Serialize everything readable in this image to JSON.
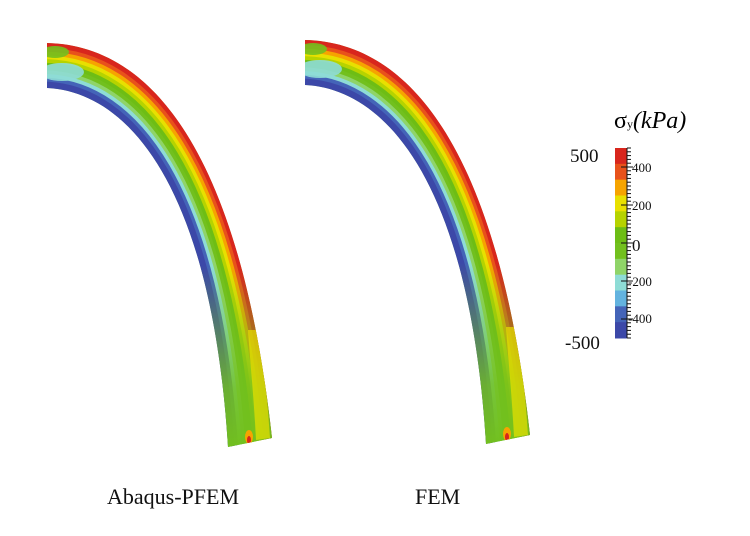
{
  "panels": [
    {
      "label": "Abaqus-PFEM"
    },
    {
      "label": "FEM"
    }
  ],
  "colorbar": {
    "symbol": "σ",
    "subscript": "y",
    "unit": "(kPa)",
    "max_label": "500",
    "min_label": "-500",
    "range": [
      -500,
      500
    ],
    "tick_labels": [
      "400",
      "200",
      "0",
      "-200",
      "-400"
    ],
    "colors": [
      "#d8261d",
      "#e8521b",
      "#f6a400",
      "#e8e000",
      "#b6d300",
      "#6dbd15",
      "#72c01e",
      "#8fd468",
      "#8edcd6",
      "#63b3df",
      "#4464b8",
      "#3c48a8"
    ]
  }
}
